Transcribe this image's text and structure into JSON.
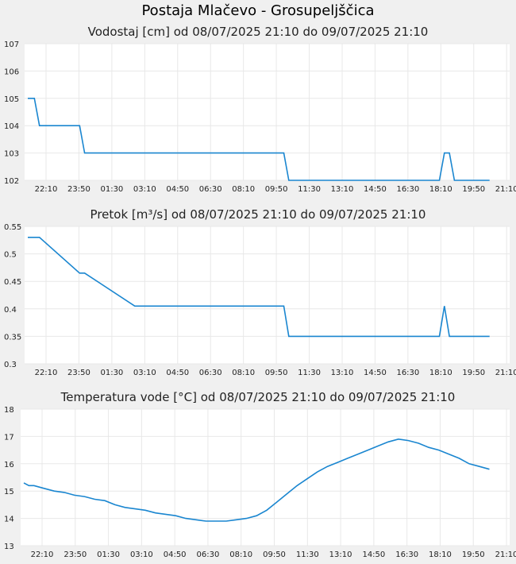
{
  "page": {
    "title": "Postaja Mlačevo - Grosupeljščica"
  },
  "colors": {
    "line": "#1a86d0",
    "grid": "#e8e8e8",
    "background": "#f0f0f0"
  },
  "chart_data": [
    {
      "type": "line",
      "title": "Vodostaj [cm] od 08/07/2025 21:10 do 09/07/2025 21:10",
      "xlabel": "",
      "ylabel": "",
      "ylim": [
        102,
        107
      ],
      "yticks": [
        "102",
        "103",
        "104",
        "105",
        "106",
        "107"
      ],
      "xticks": [
        "22:10",
        "23:50",
        "01:30",
        "03:10",
        "04:50",
        "06:30",
        "08:10",
        "09:50",
        "11:30",
        "13:10",
        "14:50",
        "16:30",
        "18:10",
        "19:50",
        "21:10"
      ],
      "x": [
        0,
        0.33,
        0.58,
        2.58,
        2.83,
        5.33,
        5.5,
        12.75,
        13.0,
        20.25,
        20.5,
        20.75,
        21.0,
        21.25,
        23.0
      ],
      "values": [
        105,
        105,
        104,
        104,
        103,
        103,
        103,
        103,
        102,
        102,
        102,
        103,
        103,
        102,
        102
      ]
    },
    {
      "type": "line",
      "title": "Pretok [m³/s] od 08/07/2025 21:10 do 09/07/2025 21:10",
      "xlabel": "",
      "ylabel": "",
      "ylim": [
        0.3,
        0.55
      ],
      "yticks": [
        "0.3",
        "0.35",
        "0.4",
        "0.45",
        "0.5",
        "0.55"
      ],
      "xticks": [
        "22:10",
        "23:50",
        "01:30",
        "03:10",
        "04:50",
        "06:30",
        "08:10",
        "09:50",
        "11:30",
        "13:10",
        "14:50",
        "16:30",
        "18:10",
        "19:50",
        "21:10"
      ],
      "x": [
        0,
        0.58,
        2.58,
        2.83,
        5.33,
        12.75,
        13.0,
        20.25,
        20.5,
        20.75,
        21.0,
        23.0
      ],
      "values": [
        0.53,
        0.53,
        0.465,
        0.465,
        0.405,
        0.405,
        0.35,
        0.35,
        0.35,
        0.405,
        0.35,
        0.35
      ]
    },
    {
      "type": "line",
      "title": "Temperatura vode [°C] od 08/07/2025 21:10 do 09/07/2025 21:10",
      "xlabel": "",
      "ylabel": "",
      "ylim": [
        13,
        18
      ],
      "yticks": [
        "13",
        "14",
        "15",
        "16",
        "17",
        "18"
      ],
      "xticks": [
        "22:10",
        "23:50",
        "01:30",
        "03:10",
        "04:50",
        "06:30",
        "08:10",
        "09:50",
        "11:30",
        "13:10",
        "14:50",
        "16:30",
        "18:10",
        "19:50",
        "21:10"
      ],
      "x": [
        0,
        0.25,
        0.5,
        1.0,
        1.5,
        2.0,
        2.5,
        3.0,
        3.5,
        4.0,
        4.5,
        5.0,
        5.5,
        6.0,
        6.5,
        7.0,
        7.5,
        8.0,
        8.5,
        9.0,
        9.5,
        10.0,
        10.5,
        11.0,
        11.5,
        12.0,
        12.5,
        13.0,
        13.5,
        14.0,
        14.5,
        15.0,
        15.5,
        16.0,
        16.5,
        17.0,
        17.5,
        18.0,
        18.5,
        19.0,
        19.5,
        20.0,
        20.5,
        21.0,
        21.5,
        22.0,
        22.5,
        23.0
      ],
      "values": [
        15.3,
        15.2,
        15.2,
        15.1,
        15.0,
        14.95,
        14.85,
        14.8,
        14.7,
        14.65,
        14.5,
        14.4,
        14.35,
        14.3,
        14.2,
        14.15,
        14.1,
        14.0,
        13.95,
        13.9,
        13.9,
        13.9,
        13.95,
        14.0,
        14.1,
        14.3,
        14.6,
        14.9,
        15.2,
        15.45,
        15.7,
        15.9,
        16.05,
        16.2,
        16.35,
        16.5,
        16.65,
        16.8,
        16.9,
        16.85,
        16.75,
        16.6,
        16.5,
        16.35,
        16.2,
        16.0,
        15.9,
        15.8
      ]
    }
  ]
}
